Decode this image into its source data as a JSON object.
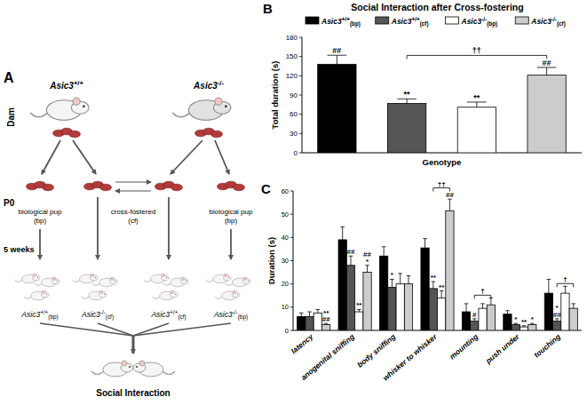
{
  "chart_data": [
    {
      "type": "bar",
      "title": "Social Interaction after Cross-fostering",
      "x_label": "Genotype",
      "y_label": "Total duration (s)",
      "categories": [
        "Asic3+/+(bp)",
        "Asic3+/+(cf)",
        "Asic3-/-(bp)",
        "Asic3-/-(cf)"
      ],
      "values": [
        138,
        77,
        71,
        121
      ],
      "errors": [
        14,
        7,
        8,
        12
      ],
      "colors": [
        "#000000",
        "#555555",
        "#ffffff",
        "#cccccc"
      ],
      "annotations": [
        "##",
        "**",
        "**",
        "##"
      ],
      "brackets": [
        {
          "text": "††",
          "categories": [
            "Asic3+/+(cf)",
            "Asic3-/-(cf)"
          ]
        }
      ],
      "ylim": [
        0,
        180
      ],
      "yticks": [
        0,
        30,
        60,
        90,
        120,
        150,
        180
      ],
      "legend": "top",
      "tick_labels": "y",
      "grid": false
    },
    {
      "type": "bar",
      "y_label": "Duration (s)",
      "categories": [
        "latency",
        "anogenital sniffing",
        "body sniffing",
        "whisker to whisker",
        "mounting",
        "push under",
        "touching"
      ],
      "series": [
        {
          "color": "#000000",
          "values": [
            6,
            39,
            32,
            35.5,
            8,
            7,
            16
          ],
          "errors": [
            1.5,
            5.5,
            4,
            4,
            3.5,
            1.5,
            6
          ],
          "annotations": [
            null,
            null,
            null,
            null,
            null,
            null,
            null
          ]
        },
        {
          "color": "#555555",
          "values": [
            6,
            28,
            18.5,
            18,
            4,
            2.5,
            4
          ],
          "errors": [
            2,
            4,
            3.5,
            3,
            1,
            0.5,
            1
          ],
          "annotations": [
            null,
            "##",
            "*",
            "**",
            "#",
            "*",
            [
              "*",
              "##"
            ]
          ]
        },
        {
          "color": "#ffffff",
          "values": [
            7.5,
            8,
            20,
            14,
            9.5,
            1.5,
            16
          ],
          "errors": [
            1.5,
            1,
            4.5,
            3,
            2,
            0.5,
            3
          ],
          "annotations": [
            null,
            "**",
            null,
            "**",
            null,
            "**",
            null
          ]
        },
        {
          "color": "#cccccc",
          "values": [
            2.5,
            25,
            20,
            51.5,
            11,
            2.5,
            9.5
          ],
          "errors": [
            0.5,
            3,
            3.5,
            5,
            3,
            0.5,
            2
          ],
          "annotations": [
            [
              "**",
              "##"
            ],
            [
              "##",
              "*"
            ],
            null,
            "##",
            null,
            "*",
            null
          ]
        }
      ],
      "brackets": [
        {
          "text": "††",
          "category": "whisker to whisker",
          "series": [
            1,
            3
          ]
        },
        {
          "text": "†",
          "category": "mounting",
          "series": [
            1,
            3
          ]
        },
        {
          "text": "†",
          "category": "touching",
          "series": [
            1,
            3
          ]
        }
      ],
      "ylim": [
        0,
        60
      ],
      "yticks": [
        0,
        10,
        20,
        30,
        40,
        50,
        60
      ],
      "grid": false
    }
  ],
  "diagram": {
    "panels": [
      "A",
      "B",
      "C"
    ],
    "row_labels": [
      "Dam",
      "P0",
      "5 weeks"
    ],
    "dams": [
      "Asic3+/+",
      "Asic3-/-"
    ],
    "pup_labels": [
      [
        "biological pup",
        "(bp)"
      ],
      [
        "cross-fostered",
        "(cf)"
      ],
      [
        "biological pup",
        "(bp)"
      ]
    ],
    "groups": [
      "Asic3+/+(bp)",
      "Asic3-/-(cf)",
      "Asic3+/+(cf)",
      "Asic3-/-(bp)"
    ],
    "outcome": "Social Interaction"
  }
}
